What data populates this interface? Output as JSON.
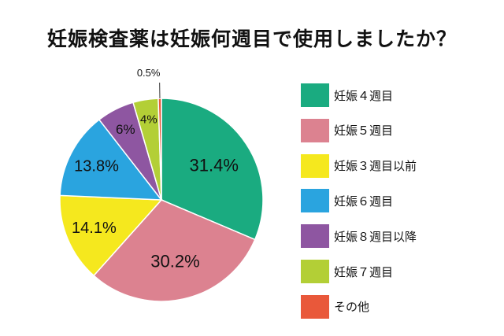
{
  "chart_data": {
    "type": "pie",
    "title": "妊娠検査薬は妊娠何週目で使用しましたか？",
    "categories": [
      "妊娠４週目",
      "妊娠５週目",
      "妊娠３週目以前",
      "妊娠６週目",
      "妊娠８週目以降",
      "妊娠７週目",
      "その他"
    ],
    "values": [
      31.4,
      30.2,
      14.1,
      13.8,
      6,
      4,
      0.5
    ],
    "labels": [
      "31.4%",
      "30.2%",
      "14.1%",
      "13.8%",
      "6%",
      "4%",
      "0.5%"
    ],
    "colors": [
      "#1aab80",
      "#dc8290",
      "#f5e81e",
      "#2aa4df",
      "#8e56a1",
      "#b3cf36",
      "#e9583a"
    ],
    "legend_position": "right",
    "start": "top",
    "direction": "clockwise"
  }
}
